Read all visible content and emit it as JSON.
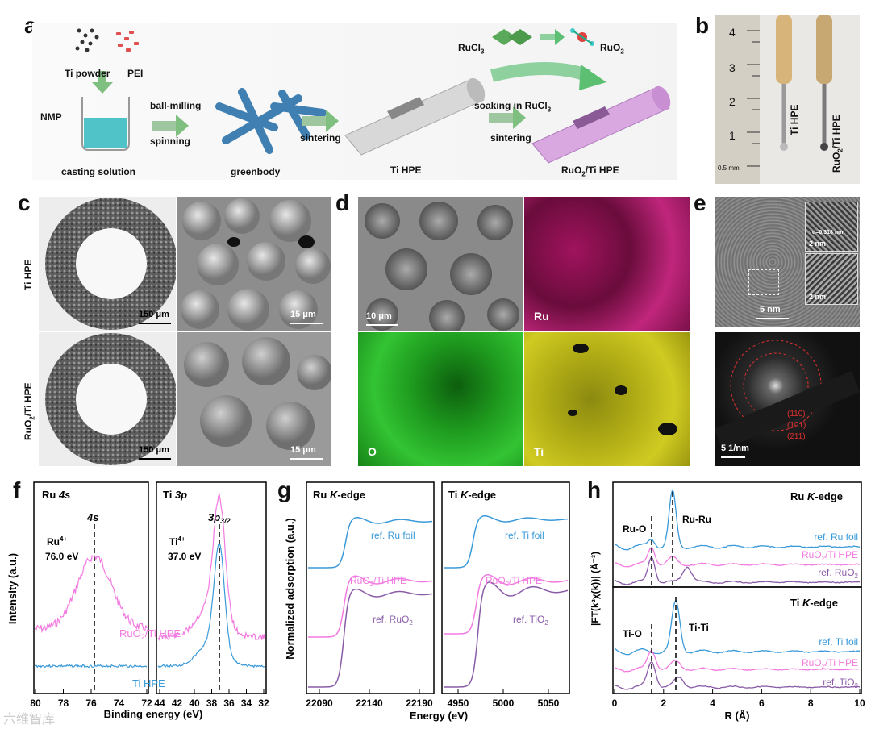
{
  "panels": {
    "a": "a",
    "b": "b",
    "c": "c",
    "d": "d",
    "e": "e",
    "f": "f",
    "g": "g",
    "h": "h"
  },
  "panel_a": {
    "ti_powder": "Ti powder",
    "pei": "PEI",
    "nmp": "NMP",
    "casting": "casting solution",
    "ballmilling": "ball-milling",
    "spinning": "spinning",
    "greenbody": "greenbody",
    "sintering1": "sintering",
    "ti_hpe": "Ti HPE",
    "soaking": "soaking in RuCl",
    "soaking_sub": "3",
    "sintering2": "sintering",
    "ruo2_ti_hpe_a": "RuO",
    "ruo2_ti_hpe_sub": "2",
    "ruo2_ti_hpe_b": "/Ti HPE",
    "rucl": "RuCl",
    "rucl_sub": "3",
    "ruo": "RuO",
    "ruo_sub": "2"
  },
  "panel_b": {
    "ruler_nums": [
      "4",
      "3",
      "2",
      "1"
    ],
    "ruler_unit_a": "0.5",
    "ruler_unit_b": "mm",
    "left": "Ti HPE",
    "right_a": "RuO",
    "right_sub": "2",
    "right_b": "/Ti HPE"
  },
  "panel_c": {
    "row1": "Ti HPE",
    "row2_a": "RuO",
    "row2_sub": "2",
    "row2_b": "/Ti HPE",
    "s1": "150 μm",
    "s2": "15 μm",
    "s3": "150 μm",
    "s4": "15 μm"
  },
  "panel_d": {
    "scale": "10 μm",
    "ru": "Ru",
    "o": "O",
    "ti": "Ti"
  },
  "panel_e": {
    "s1": "5 nm",
    "s2": "2 nm",
    "s3": "2 nm",
    "s4": "5 1/nm",
    "dspacing": "d=0.318 nm",
    "rings": [
      "(110)",
      "(101)",
      "(211)"
    ]
  },
  "panel_f": {
    "ylabel": "Intensity (a.u.)",
    "xlabel": "Binding energy (eV)",
    "left_title_a": "Ru ",
    "left_title_b": "4s",
    "right_title_a": "Ti ",
    "right_title_b": "3p",
    "peak_left": "4s",
    "peak_right_a": "3p",
    "peak_right_sub": "3/2",
    "ru4_a": "Ru",
    "ru4_sup": "4+",
    "ru4_val": "76.0 eV",
    "ti4_a": "Ti",
    "ti4_sup": "4+",
    "ti4_val": "37.0 eV",
    "series_ruo2_a": "RuO",
    "series_ruo2_sub": "2",
    "series_ruo2_b": "/Ti HPE",
    "series_ti": "Ti HPE",
    "left_ticks": [
      "80",
      "78",
      "76",
      "74",
      "72"
    ],
    "right_ticks": [
      "44",
      "42",
      "40",
      "38",
      "36",
      "34",
      "32"
    ]
  },
  "panel_g": {
    "ylabel": "Normalized adsorption (a.u.)",
    "xlabel": "Energy (eV)",
    "left_title_a": "Ru ",
    "left_title_b": "K",
    "left_title_c": "-edge",
    "right_title_a": "Ti ",
    "right_title_b": "K",
    "right_title_c": "-edge",
    "left_ticks": [
      "22090",
      "22140",
      "22190"
    ],
    "right_ticks": [
      "4950",
      "5000",
      "5050"
    ],
    "l1": "ref. Ru foil",
    "l2_a": "RuO",
    "l2_sub": "2",
    "l2_b": "/Ti HPE",
    "l3_a": "ref. RuO",
    "l3_sub": "2",
    "r1": "ref. Ti foil",
    "r2_a": "RuO",
    "r2_sub": "2",
    "r2_b": "/Ti HPE",
    "r3_a": "ref. TiO",
    "r3_sub": "2"
  },
  "panel_h": {
    "ylabel": "|FT(k²χ(k))| (Å⁻³)",
    "xlabel": "R (Å)",
    "xticks": [
      "0",
      "2",
      "4",
      "6",
      "8",
      "10"
    ],
    "top_title_a": "Ru ",
    "top_title_b": "K",
    "top_title_c": "-edge",
    "bot_title_a": "Ti ",
    "bot_title_b": "K",
    "bot_title_c": "-edge",
    "ruo": "Ru-O",
    "ruru": "Ru-Ru",
    "tio": "Ti-O",
    "titi": "Ti-Ti",
    "t1": "ref. Ru foil",
    "t2_a": "RuO",
    "t2_sub": "2",
    "t2_b": "/Ti HPE",
    "t3_a": "ref. RuO",
    "t3_sub": "2",
    "b1": "ref. Ti foil",
    "b2_a": "RuO",
    "b2_sub": "2",
    "b2_b": "/Ti HPE",
    "b3_a": "ref. TiO",
    "b3_sub": "2"
  },
  "watermark": "六维智库",
  "colors": {
    "blue": "#3a9ad9",
    "pink": "#f27ae0",
    "purple": "#8a5ca8",
    "magenta": "#c8217a",
    "green": "#2fb52f",
    "yellow": "#c8c21a",
    "arrow_green": "#6fbf73"
  }
}
